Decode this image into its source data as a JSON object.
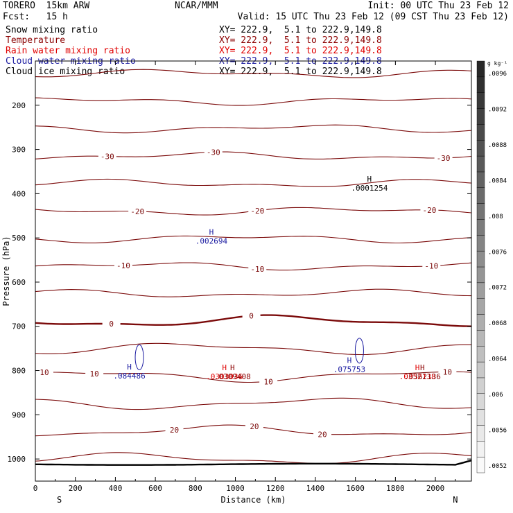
{
  "header": {
    "model": "TORERO  15km ARW",
    "forecast": "Fcst:   15 h",
    "center": "NCAR/MMM",
    "init": "Init: 00 UTC Thu 23 Feb 12",
    "valid": "Valid: 15 UTC Thu 23 Feb 12 (09 CST Thu 23 Feb 12)"
  },
  "fields": [
    {
      "name": "Snow mixing ratio",
      "xy": "XY= 222.9,  5.1 to 222.9,149.8",
      "color": "#000000"
    },
    {
      "name": "Temperature",
      "xy": "XY= 222.9,  5.1 to 222.9,149.8",
      "color": "#8b0000"
    },
    {
      "name": "Rain water mixing ratio",
      "xy": "XY= 222.9,  5.1 to 222.9,149.8",
      "color": "#e00000"
    },
    {
      "name": "Cloud water mixing ratio",
      "xy": "XY= 222.9,  5.1 to 222.9,149.8",
      "color": "#1a1aa0"
    },
    {
      "name": "Cloud ice mixing ratio",
      "xy": "XY= 222.9,  5.1 to 222.9,149.8",
      "color": "#000000"
    }
  ],
  "chart_data": {
    "type": "contour cross-section",
    "xlabel": "Distance (km)",
    "ylabel": "Pressure (hPa)",
    "xlim": [
      0,
      2180
    ],
    "ylim": [
      1050,
      100
    ],
    "x_ticks": [
      0,
      200,
      400,
      600,
      800,
      1000,
      1200,
      1400,
      1600,
      1800,
      2000
    ],
    "y_ticks": [
      200,
      300,
      400,
      500,
      600,
      700,
      800,
      900,
      1000
    ],
    "x_ends": {
      "left": "S",
      "right": "N"
    },
    "temperature_contours": [
      {
        "value": -30,
        "label": "-30",
        "pressure": 315,
        "labels_at": [
          360,
          890,
          2040
        ]
      },
      {
        "value": -20,
        "label": "-20",
        "pressure": 372,
        "labels_at": [
          510,
          1110,
          1970
        ]
      },
      {
        "value": -10,
        "label": "-10",
        "pressure": 463,
        "labels_at": [
          440,
          1110,
          1980
        ]
      },
      {
        "value": 0,
        "label": "0",
        "pressure": 587,
        "labels_at": [
          380,
          1080
        ]
      },
      {
        "value": 10,
        "label": "10",
        "pressure": 755,
        "labels_at": [
          45,
          295,
          1165,
          2060
        ]
      },
      {
        "value": 20,
        "label": "20",
        "pressure": 937,
        "labels_at": [
          695,
          1095,
          1435
        ]
      }
    ],
    "temperature_interval_C": 5,
    "maxima": [
      {
        "label": "H",
        "value": ".0001254",
        "x": 1670,
        "p": 385,
        "color": "#000000"
      },
      {
        "label": "H",
        "value": ".002694",
        "x": 880,
        "p": 505,
        "color": "#1a1aa0"
      },
      {
        "label": "H",
        "value": ".084486",
        "x": 470,
        "p": 810,
        "color": "#1a1aa0"
      },
      {
        "label": "H",
        "value": ".075753",
        "x": 1570,
        "p": 795,
        "color": "#1a1aa0"
      },
      {
        "label": "H",
        "value": ".0303036",
        "x": 945,
        "p": 812,
        "color": "#e00000"
      },
      {
        "label": "H",
        "value": ".0309408",
        "x": 980,
        "p": 812,
        "color": "#8b0000"
      },
      {
        "label": "H",
        "value": ".0352138",
        "x": 1910,
        "p": 812,
        "color": "#e00000"
      },
      {
        "label": "H",
        "value": ".0362136",
        "x": 1930,
        "p": 812,
        "color": "#8b0000"
      }
    ],
    "colorbar": {
      "units": "g kg⁻¹",
      "tick_labels": [
        ".0052",
        ".0056",
        ".006",
        ".0064",
        ".0068",
        ".0072",
        ".0076",
        ".008",
        ".0084",
        ".0088",
        ".0092",
        ".0096"
      ]
    }
  }
}
